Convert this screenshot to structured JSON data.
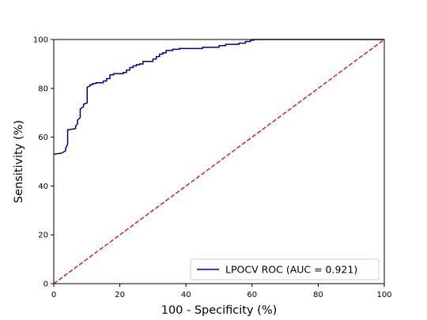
{
  "chart_data": {
    "type": "line",
    "xlabel": "100 - Specificity (%)",
    "ylabel": "Sensitivity (%)",
    "xlim": [
      0,
      100
    ],
    "ylim": [
      0,
      100
    ],
    "xticks": [
      0,
      20,
      40,
      60,
      80,
      100
    ],
    "yticks": [
      0,
      20,
      40,
      60,
      80,
      100
    ],
    "grid": false,
    "legend_position": "bottom-right",
    "series": [
      {
        "name": "LPOCV ROC (AUC = 0.921)",
        "color": "#00008b",
        "style": "solid",
        "x": [
          0,
          2.5,
          3.6,
          3.6,
          4.2,
          4.2,
          6.6,
          6.6,
          7.2,
          7.2,
          8.0,
          8.0,
          9.0,
          9.0,
          10.1,
          10.1,
          11.0,
          11.0,
          11.8,
          11.8,
          12.8,
          12.8,
          15.0,
          15.0,
          16.0,
          16.0,
          17.0,
          17.0,
          18.1,
          18.1,
          21.0,
          21.0,
          22.0,
          22.0,
          23.0,
          23.0,
          24.0,
          24.0,
          25.0,
          25.0,
          26.0,
          26.0,
          27.0,
          27.0,
          30.0,
          30.0,
          31.0,
          31.0,
          32.0,
          32.0,
          33.0,
          33.0,
          34.0,
          34.0,
          36.0,
          36.0,
          38.0,
          38.0,
          45.0,
          45.0,
          50.0,
          50.0,
          52.0,
          52.0,
          56.0,
          56.0,
          58.0,
          58.0,
          59.5,
          59.5,
          60.5,
          60.5,
          100
        ],
        "y": [
          53,
          53.5,
          54.5,
          55.5,
          57,
          63,
          63.5,
          64.5,
          65.5,
          67,
          68,
          71.5,
          72.5,
          73.5,
          74,
          80.5,
          81,
          81.5,
          81.5,
          82,
          82,
          82.3,
          82.3,
          83,
          83,
          84,
          84,
          85.5,
          85.5,
          86,
          86,
          86.5,
          86.5,
          87.5,
          87.5,
          88.5,
          88.5,
          89.2,
          89.2,
          89.7,
          89.7,
          90,
          90,
          91,
          91,
          92,
          92,
          93,
          93,
          94,
          94,
          94.6,
          94.6,
          95.5,
          95.5,
          96,
          96,
          96.3,
          96.3,
          96.8,
          96.8,
          97.5,
          97.5,
          98,
          98,
          98.5,
          98.5,
          99.2,
          99.2,
          99.7,
          99.7,
          100,
          100
        ]
      },
      {
        "name": "",
        "color": "#cc2222",
        "style": "dashed",
        "x": [
          0,
          100
        ],
        "y": [
          0,
          100
        ]
      }
    ]
  }
}
